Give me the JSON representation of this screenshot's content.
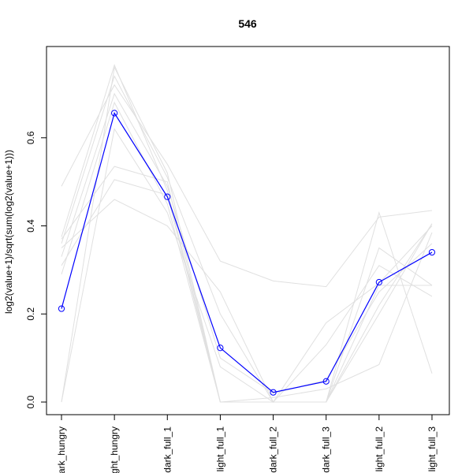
{
  "chart_data": {
    "type": "line",
    "title": "546",
    "xlabel": "",
    "ylabel": "log2(value+1)/sqrt(sum(log2(value+1)))",
    "categories": [
      "dark_hungry",
      "light_hungry",
      "dark_full_1",
      "light_full_1",
      "dark_full_2",
      "dark_full_3",
      "light_full_2",
      "light_full_3"
    ],
    "tick_labels": [
      "ark_hungry",
      "ght_hungry",
      "dark_full_1",
      "light_full_1",
      "dark_full_2",
      "dark_full_3",
      "light_full_2",
      "light_full_3"
    ],
    "ylim": [
      0,
      0.77
    ],
    "yticks": [
      0.0,
      0.2,
      0.4,
      0.6
    ],
    "ytick_labels": [
      "0.0",
      "0.2",
      "0.4",
      "0.6"
    ],
    "grid": false,
    "legend": "none",
    "highlight_color": "#0000ff",
    "background_color": "#e0e0e0",
    "highlight": {
      "values": [
        0.212,
        0.656,
        0.466,
        0.123,
        0.022,
        0.047,
        0.272,
        0.34
      ]
    },
    "background_series": [
      {
        "values": [
          0.49,
          0.72,
          0.54,
          0.32,
          0.275,
          0.262,
          0.42,
          0.435
        ]
      },
      {
        "values": [
          0.37,
          0.535,
          0.5,
          0.0,
          0.0,
          0.0,
          0.43,
          0.065
        ]
      },
      {
        "values": [
          0.35,
          0.46,
          0.4,
          0.25,
          0.0,
          0.18,
          0.27,
          0.4
        ]
      },
      {
        "values": [
          0.0,
          0.76,
          0.52,
          0.0,
          0.0,
          0.0,
          0.35,
          0.265
        ]
      },
      {
        "values": [
          0.33,
          0.7,
          0.49,
          0.1,
          0.02,
          0.05,
          0.25,
          0.36
        ]
      },
      {
        "values": [
          0.29,
          0.68,
          0.45,
          0.0,
          0.0,
          0.0,
          0.22,
          0.405
        ]
      },
      {
        "values": [
          0.36,
          0.74,
          0.51,
          0.2,
          0.0,
          0.13,
          0.31,
          0.24
        ]
      },
      {
        "values": [
          0.31,
          0.505,
          0.47,
          0.0,
          0.01,
          0.03,
          0.085,
          0.385
        ]
      },
      {
        "values": [
          0.0,
          0.62,
          0.43,
          0.08,
          0.0,
          0.0,
          0.2,
          0.405
        ]
      },
      {
        "values": [
          0.375,
          0.765,
          0.48,
          0.0,
          0.0,
          0.0,
          0.265,
          0.265
        ]
      }
    ]
  }
}
